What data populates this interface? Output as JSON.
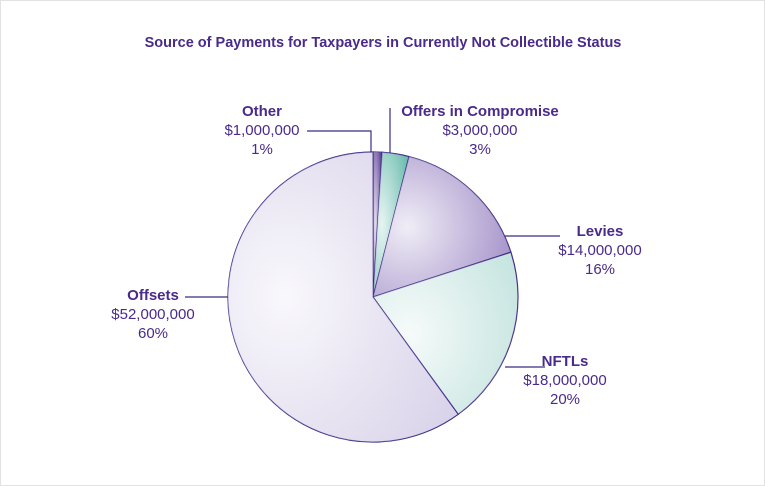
{
  "chart_data": {
    "type": "pie",
    "title": "Source of Payments for Taxpayers in Currently Not Collectible Status",
    "categories": [
      "Other",
      "Offers in Compromise",
      "Levies",
      "NFTLs",
      "Offsets"
    ],
    "values": [
      1,
      3,
      16,
      20,
      60
    ],
    "value_labels": [
      "1%",
      "3%",
      "16%",
      "20%",
      "60%"
    ],
    "amounts": [
      1000000,
      3000000,
      14000000,
      18000000,
      52000000
    ],
    "amount_labels": [
      "$1,000,000",
      "$3,000,000",
      "$14,000,000",
      "$18,000,000",
      "$52,000,000"
    ],
    "colors": [
      "#4b2a8a",
      "#5fb8a8",
      "#9b87c4",
      "#c3e3de",
      "#d6d0e8"
    ]
  }
}
